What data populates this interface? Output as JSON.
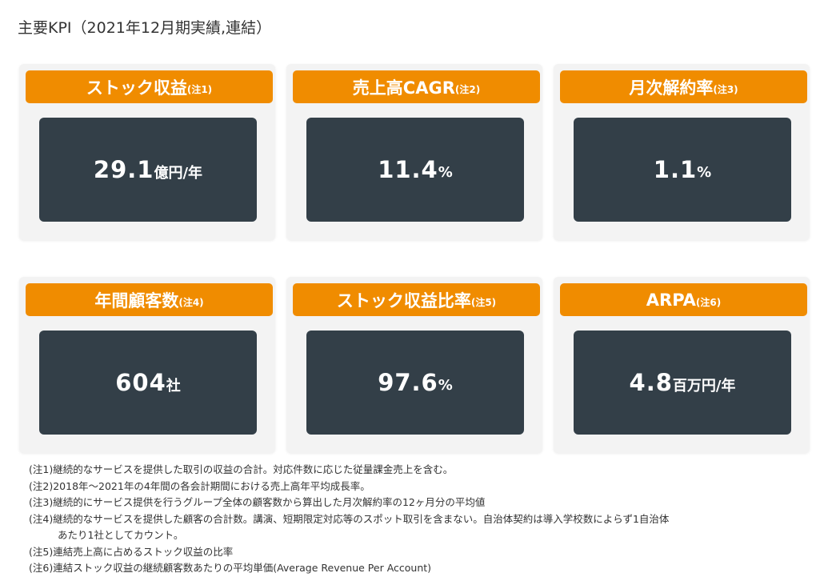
{
  "title": "主要KPI（2021年12月期実績,連結）",
  "colors": {
    "header": "#f08c00",
    "value_box": "#333f48",
    "card": "#f3f3f3"
  },
  "kpis": [
    {
      "label": "ストック収益",
      "note": "(注1)",
      "value": "29.1",
      "unit": "億円/年"
    },
    {
      "label": "売上高CAGR",
      "note": "(注2)",
      "value": "11.4",
      "unit": "%"
    },
    {
      "label": "月次解約率",
      "note": "(注3)",
      "value": "1.1",
      "unit": "%"
    },
    {
      "label": "年間顧客数",
      "note": "(注4)",
      "value": "604",
      "unit": "社"
    },
    {
      "label": "ストック収益比率",
      "note": "(注5)",
      "value": "97.6",
      "unit": "%"
    },
    {
      "label": "ARPA",
      "note": "(注6)",
      "value": "4.8",
      "unit": "百万円/年"
    }
  ],
  "notes": [
    "(注1)継続的なサービスを提供した取引の収益の合計。対応件数に応じた従量課金売上を含む。",
    "(注2)2018年～2021年の4年間の各会計期間における売上高年平均成長率。",
    "(注3)継続的にサービス提供を行うグループ全体の顧客数から算出した月次解約率の12ヶ月分の平均値",
    "(注4)継続的なサービスを提供した顧客の合計数。講演、短期限定対応等のスポット取引を含まない。自治体契約は導入学校数によらず1自治体",
    "あたり1社としてカウント。",
    "(注5)連結売上高に占めるストック収益の比率",
    "(注6)連結ストック収益の継続顧客数あたりの平均単価(Average Revenue Per Account)"
  ]
}
